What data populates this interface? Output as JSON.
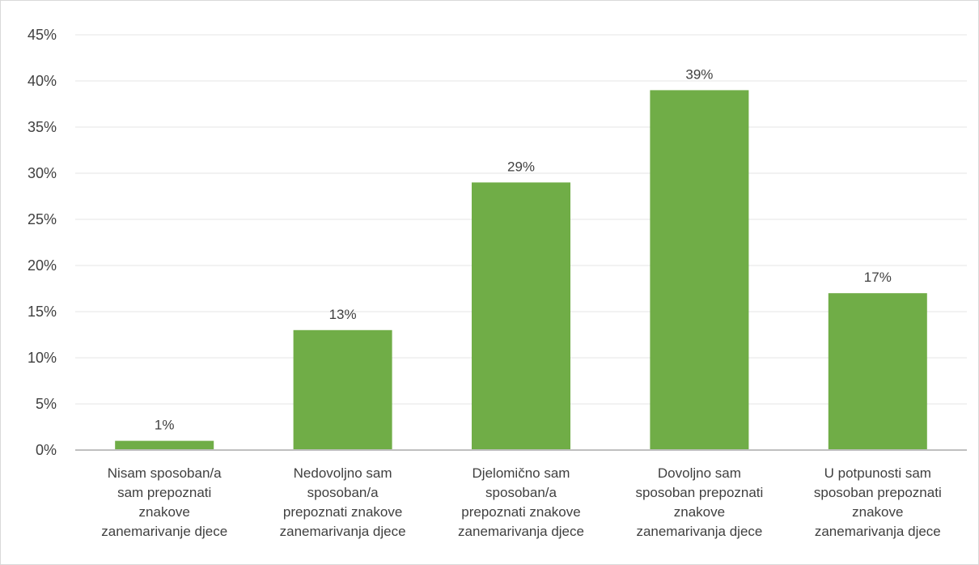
{
  "chart_data": {
    "type": "bar",
    "title": "",
    "xlabel": "",
    "ylabel": "",
    "categories": [
      [
        "Nisam sposoban/a",
        "sam prepoznati",
        "znakove",
        "zanemarivanje djece"
      ],
      [
        "Nedovoljno sam",
        "sposoban/a",
        "prepoznati znakove",
        "zanemarivanja djece"
      ],
      [
        "Djelomično sam",
        "sposoban/a",
        "prepoznati znakove",
        "zanemarivanja djece"
      ],
      [
        "Dovoljno sam",
        "sposoban prepoznati",
        "znakove",
        "zanemarivanja djece"
      ],
      [
        "U potpunosti sam",
        "sposoban prepoznati",
        "znakove",
        "zanemarivanja djece"
      ]
    ],
    "values": [
      1,
      13,
      29,
      39,
      17
    ],
    "data_labels": [
      "1%",
      "13%",
      "29%",
      "39%",
      "17%"
    ],
    "ylim": [
      0,
      45
    ],
    "ytick_values": [
      0,
      5,
      10,
      15,
      20,
      25,
      30,
      35,
      40,
      45
    ],
    "ytick_labels": [
      "0%",
      "5%",
      "10%",
      "15%",
      "20%",
      "25%",
      "30%",
      "35%",
      "40%",
      "45%"
    ],
    "grid": true,
    "legend": "none",
    "colors": {
      "bar": "#70ad47",
      "grid": "#e6e6e6",
      "axis": "#bfbfbf",
      "text": "#404040"
    }
  }
}
